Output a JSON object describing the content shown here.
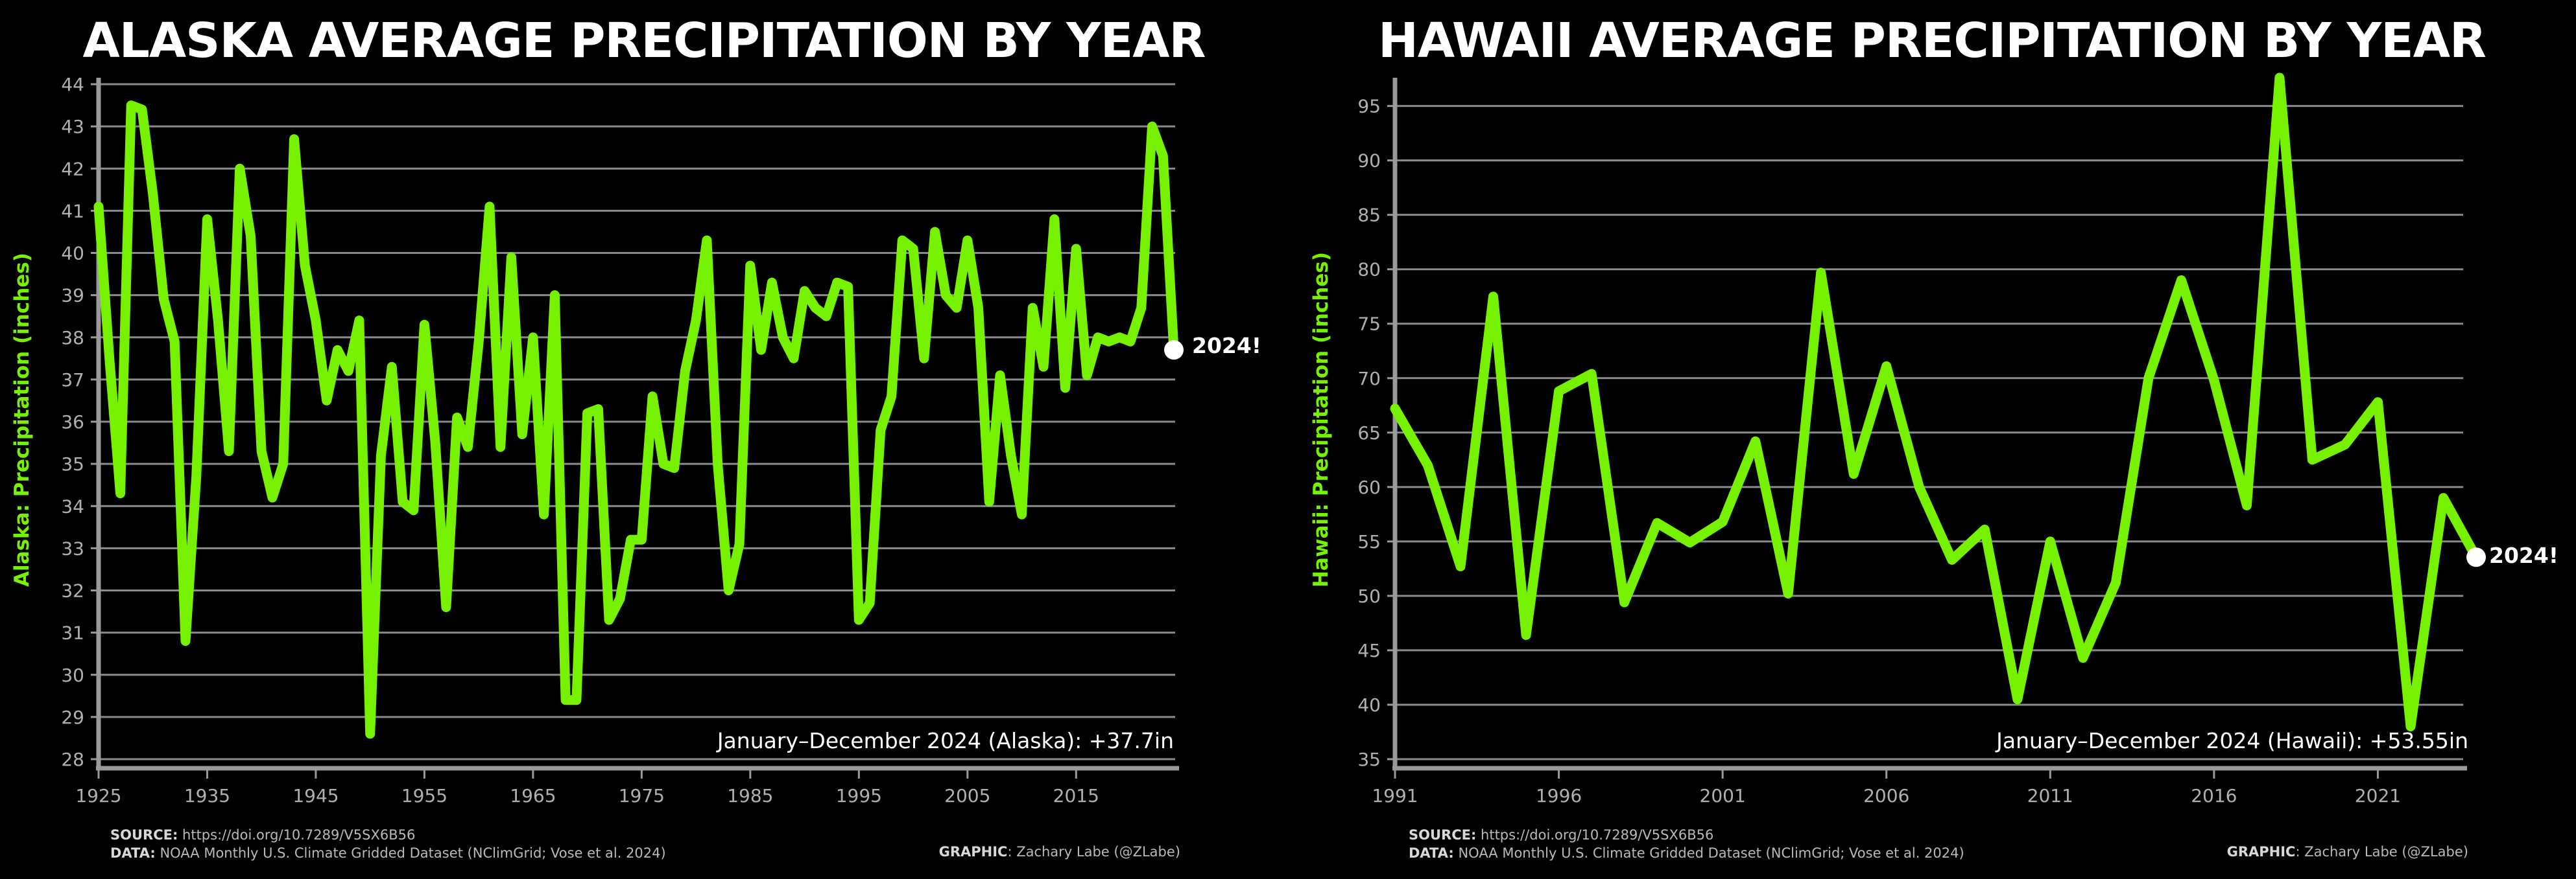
{
  "chart_data": [
    {
      "type": "line",
      "title": "ALASKA AVERAGE PRECIPITATION BY YEAR",
      "ylabel": "Alaska: Precipitation (inches)",
      "xlabel": "",
      "xlim": [
        1925,
        2024
      ],
      "ylim": [
        28,
        44
      ],
      "xticks": [
        1925,
        1935,
        1945,
        1955,
        1965,
        1975,
        1985,
        1995,
        2005,
        2015
      ],
      "yticks": [
        28,
        29,
        30,
        31,
        32,
        33,
        34,
        35,
        36,
        37,
        38,
        39,
        40,
        41,
        42,
        43,
        44
      ],
      "grid": "horizontal",
      "line_color": "#76f200",
      "annotation": "January–December 2024 (Alaska): +37.7in",
      "end_label": "2024!",
      "x": [
        1925,
        1926,
        1927,
        1928,
        1929,
        1930,
        1931,
        1932,
        1933,
        1934,
        1935,
        1936,
        1937,
        1938,
        1939,
        1940,
        1941,
        1942,
        1943,
        1944,
        1945,
        1946,
        1947,
        1948,
        1949,
        1950,
        1951,
        1952,
        1953,
        1954,
        1955,
        1956,
        1957,
        1958,
        1959,
        1960,
        1961,
        1962,
        1963,
        1964,
        1965,
        1966,
        1967,
        1968,
        1969,
        1970,
        1971,
        1972,
        1973,
        1974,
        1975,
        1976,
        1977,
        1978,
        1979,
        1980,
        1981,
        1982,
        1983,
        1984,
        1985,
        1986,
        1987,
        1988,
        1989,
        1990,
        1991,
        1992,
        1993,
        1994,
        1995,
        1996,
        1997,
        1998,
        1999,
        2000,
        2001,
        2002,
        2003,
        2004,
        2005,
        2006,
        2007,
        2008,
        2009,
        2010,
        2011,
        2012,
        2013,
        2014,
        2015,
        2016,
        2017,
        2018,
        2019,
        2020,
        2021,
        2022,
        2023,
        2024
      ],
      "values": [
        41.1,
        37.5,
        34.3,
        43.5,
        43.4,
        41.4,
        38.9,
        37.9,
        30.8,
        34.7,
        40.8,
        38.4,
        35.3,
        42.0,
        40.4,
        35.3,
        34.2,
        35.0,
        42.7,
        39.7,
        38.4,
        36.5,
        37.7,
        37.2,
        38.4,
        28.6,
        35.2,
        37.3,
        34.1,
        33.9,
        38.3,
        35.5,
        31.6,
        36.1,
        35.4,
        37.9,
        41.1,
        35.4,
        39.9,
        35.7,
        38.0,
        33.8,
        39.0,
        29.4,
        29.4,
        36.2,
        36.3,
        31.3,
        31.8,
        33.2,
        33.2,
        36.6,
        35.0,
        34.9,
        37.2,
        38.4,
        40.3,
        35.0,
        32.0,
        33.1,
        39.7,
        37.7,
        39.3,
        38.0,
        37.5,
        39.1,
        38.7,
        38.5,
        39.3,
        39.2,
        31.3,
        31.7,
        35.8,
        36.6,
        40.3,
        40.1,
        37.5,
        40.5,
        39.0,
        38.7,
        40.3,
        38.7,
        34.1,
        37.1,
        35.2,
        33.8,
        38.7,
        37.3,
        40.8,
        36.8,
        40.1,
        37.1,
        38.0,
        37.9,
        38.0,
        37.9,
        38.7,
        43.0,
        42.3,
        37.7
      ]
    },
    {
      "type": "line",
      "title": "HAWAII AVERAGE PRECIPITATION BY YEAR",
      "ylabel": "Hawaii: Precipitation (inches)",
      "xlabel": "",
      "xlim": [
        1991,
        2024
      ],
      "ylim": [
        35,
        97
      ],
      "xticks": [
        1991,
        1996,
        2001,
        2006,
        2011,
        2016,
        2021
      ],
      "yticks": [
        35,
        40,
        45,
        50,
        55,
        60,
        65,
        70,
        75,
        80,
        85,
        90,
        95
      ],
      "grid": "horizontal",
      "line_color": "#76f200",
      "annotation": "January–December 2024 (Hawaii): +53.55in",
      "end_label": "2024!",
      "x": [
        1991,
        1992,
        1993,
        1994,
        1995,
        1996,
        1997,
        1998,
        1999,
        2000,
        2001,
        2002,
        2003,
        2004,
        2005,
        2006,
        2007,
        2008,
        2009,
        2010,
        2011,
        2012,
        2013,
        2014,
        2015,
        2016,
        2017,
        2018,
        2019,
        2020,
        2021,
        2022,
        2023,
        2024
      ],
      "values": [
        67.2,
        62.0,
        52.7,
        77.5,
        46.4,
        68.8,
        70.4,
        49.4,
        56.7,
        54.9,
        56.8,
        64.2,
        50.2,
        79.7,
        61.2,
        71.1,
        60.0,
        53.3,
        56.1,
        40.5,
        55.0,
        44.3,
        51.2,
        70.0,
        79.0,
        69.8,
        58.3,
        97.6,
        62.5,
        63.9,
        67.8,
        38.0,
        59.0,
        53.55
      ]
    }
  ],
  "footer": {
    "source_label": "SOURCE:",
    "source_text": " https://doi.org/10.7289/V5SX6B56",
    "data_label": "DATA:",
    "data_text": " NOAA Monthly U.S. Climate Gridded Dataset (NClimGrid; Vose et al. 2024)",
    "graphic_label": "GRAPHIC",
    "graphic_text": ": Zachary Labe (@ZLabe)"
  }
}
